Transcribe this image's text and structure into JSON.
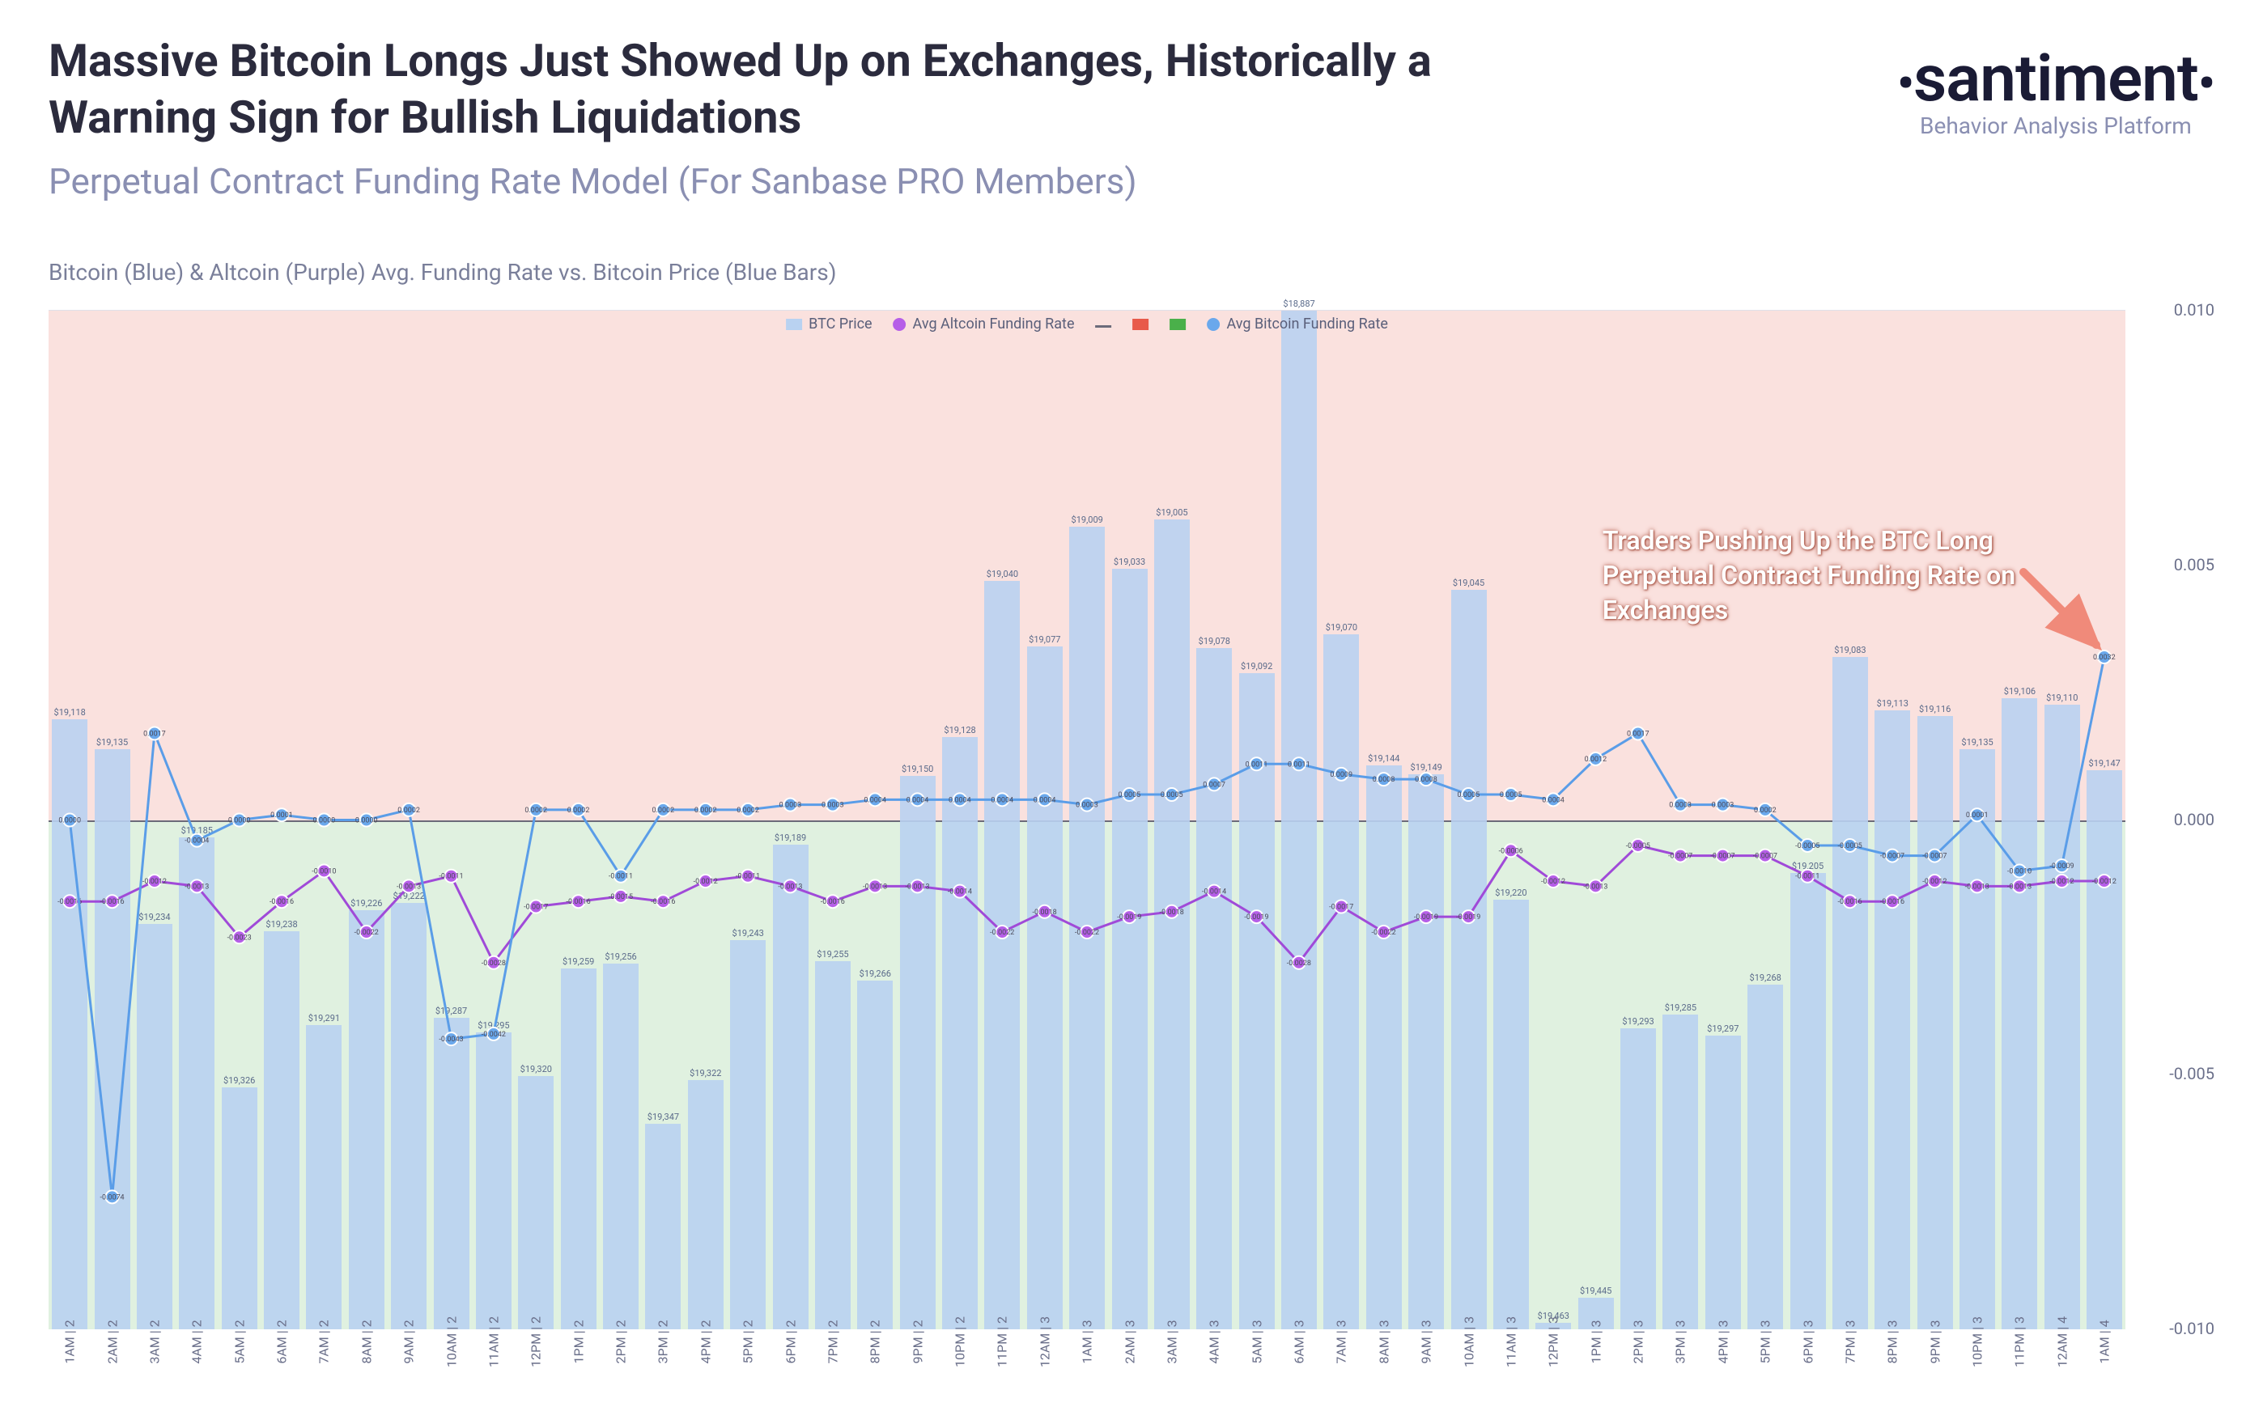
{
  "header": {
    "title": "Massive Bitcoin Longs Just Showed Up on Exchanges, Historically a Warning Sign for Bullish Liquidations",
    "subtitle": "Perpetual Contract Funding Rate Model (For Sanbase PRO Members)",
    "brand_name": "santiment",
    "brand_tag": "Behavior Analysis Platform"
  },
  "series_desc": "Bitcoin (Blue) & Altcoin (Purple) Avg. Funding Rate vs. Bitcoin Price (Blue Bars)",
  "legend": {
    "btc_price": "BTC Price",
    "alt_rate": "Avg Altcoin Funding Rate",
    "btc_rate": "Avg Bitcoin Funding Rate"
  },
  "annotation": {
    "text": "Traders Pushing Up the BTC Long Perpetual Contract Funding Rate on Exchanges"
  },
  "colors": {
    "zone_top": "#f6c9c3",
    "zone_bot": "#c7e6c7",
    "bar": "#b9d2f1",
    "btc_line": "#5a9de8",
    "btc_marker": "#6aa8ec",
    "alt_line": "#a04ad8",
    "alt_marker": "#b65ee8",
    "zero": "#6b6b7a",
    "arrow": "#f08a7a",
    "legend_red": "#e85a4a",
    "legend_green": "#4ab04a"
  },
  "chart": {
    "type": "bar+line",
    "y_rate": {
      "min": -0.01,
      "max": 0.01,
      "ticks": [
        0.01,
        0.005,
        0.0,
        -0.005,
        -0.01
      ]
    },
    "price_range": {
      "min": 18887,
      "max": 19463
    },
    "categories": [
      "1AM | 2",
      "2AM | 2",
      "3AM | 2",
      "4AM | 2",
      "5AM | 2",
      "6AM | 2",
      "7AM | 2",
      "8AM | 2",
      "9AM | 2",
      "10AM | 2",
      "11AM | 2",
      "12PM | 2",
      "1PM | 2",
      "2PM | 2",
      "3PM | 2",
      "4PM | 2",
      "5PM | 2",
      "6PM | 2",
      "7PM | 2",
      "8PM | 2",
      "9PM | 2",
      "10PM | 2",
      "11PM | 2",
      "12AM | 3",
      "1AM | 3",
      "2AM | 3",
      "3AM | 3",
      "4AM | 3",
      "5AM | 3",
      "6AM | 3",
      "7AM | 3",
      "8AM | 3",
      "9AM | 3",
      "10AM | 3",
      "11AM | 3",
      "12PM | 3",
      "1PM | 3",
      "2PM | 3",
      "3PM | 3",
      "4PM | 3",
      "5PM | 3",
      "6PM | 3",
      "7PM | 3",
      "8PM | 3",
      "9PM | 3",
      "10PM | 3",
      "11PM | 3",
      "12AM | 4",
      "1AM | 4"
    ],
    "price": [
      19118,
      19135,
      19234,
      19185,
      19326,
      19238,
      19291,
      19226,
      19222,
      19287,
      19295,
      19320,
      19259,
      19256,
      19347,
      19322,
      19243,
      19189,
      19255,
      19266,
      19150,
      19128,
      19040,
      19077,
      19009,
      19033,
      19005,
      19078,
      19092,
      18887,
      19070,
      19144,
      19149,
      19045,
      19220,
      19463,
      19445,
      19293,
      19285,
      19297,
      19268,
      19205,
      19083,
      19113,
      19116,
      19135,
      19106,
      19110,
      19147
    ],
    "price_labels": [
      "$19,118",
      "$19,135",
      "$19,234",
      "$19,185",
      "$19,326",
      "$19,238",
      "$19,291",
      "$19,226",
      "$19,222",
      "$19,287",
      "$19,295",
      "$19,320",
      "$19,259",
      "$19,256",
      "$19,347",
      "$19,322",
      "$19,243",
      "$19,189",
      "$19,255",
      "$19,266",
      "$19,150",
      "$19,128",
      "$19,040",
      "$19,077",
      "$19,009",
      "$19,033",
      "$19,005",
      "$19,078",
      "$19,092",
      "$18,887",
      "$19,070",
      "$19,144",
      "$19,149",
      "$19,045",
      "$19,220",
      "$19,463",
      "$19,445",
      "$19,293",
      "$19,285",
      "$19,297",
      "$19,268",
      "$19,205",
      "$19,083",
      "$19,113",
      "$19,116",
      "$19,135",
      "$19,106",
      "$19,110",
      "$19,147"
    ],
    "btc_rate": [
      0.0,
      -0.0074,
      0.0017,
      -0.0004,
      0.0,
      0.0001,
      0.0,
      0.0,
      0.0002,
      -0.0043,
      -0.0042,
      0.0002,
      0.0002,
      -0.0011,
      0.0002,
      0.0002,
      0.0002,
      0.0003,
      0.0003,
      0.0004,
      0.0004,
      0.0004,
      0.0004,
      0.0004,
      0.0003,
      0.0005,
      0.0005,
      0.0007,
      0.0011,
      0.0011,
      0.0009,
      0.0008,
      0.0008,
      0.0005,
      0.0005,
      0.0004,
      0.0012,
      0.0017,
      0.0003,
      0.0003,
      0.0002,
      -0.0005,
      -0.0005,
      -0.0007,
      -0.0007,
      0.0001,
      -0.001,
      -0.0009,
      0.0032
    ],
    "btc_rate_labels": [
      "0.0000",
      "-0.0074",
      "0.0017",
      "-0.0004",
      "0.0000",
      "0.0001",
      "0.0000",
      "0.0000",
      "0.0002",
      "-0.0043",
      "-0.0042",
      "0.0002",
      "0.0002",
      "-0.0011",
      "0.0002",
      "0.0002",
      "0.0002",
      "0.0003",
      "0.0003",
      "0.0004",
      "0.0004",
      "0.0004",
      "0.0004",
      "0.0004",
      "0.0003",
      "0.0005",
      "0.0005",
      "0.0007",
      "0.0011",
      "0.0011",
      "0.0009",
      "0.0008",
      "0.0008",
      "0.0005",
      "0.0005",
      "0.0004",
      "0.0012",
      "0.0017",
      "0.0003",
      "0.0003",
      "0.0002",
      "-0.0005",
      "-0.0005",
      "-0.0007",
      "-0.0007",
      "0.0001",
      "-0.0010",
      "-0.0009",
      "0.0032"
    ],
    "alt_rate": [
      -0.0016,
      -0.0016,
      -0.0012,
      -0.0013,
      -0.0023,
      -0.0016,
      -0.001,
      -0.0022,
      -0.0013,
      -0.0011,
      -0.0028,
      -0.0017,
      -0.0016,
      -0.0015,
      -0.0016,
      -0.0012,
      -0.0011,
      -0.0013,
      -0.0016,
      -0.0013,
      -0.0013,
      -0.0014,
      -0.0022,
      -0.0018,
      -0.0022,
      -0.0019,
      -0.0018,
      -0.0014,
      -0.0019,
      -0.0028,
      -0.0017,
      -0.0022,
      -0.0019,
      -0.0019,
      -0.0006,
      -0.0012,
      -0.0013,
      -0.0005,
      -0.0007,
      -0.0007,
      -0.0007,
      -0.0011,
      -0.0016,
      -0.0016,
      -0.0012,
      -0.0013,
      -0.0013,
      -0.0012,
      -0.0012
    ],
    "alt_rate_labels": [
      "-0.0016",
      "-0.0016",
      "-0.0012",
      "-0.0013",
      "-0.0023",
      "-0.0016",
      "-0.0010",
      "-0.0022",
      "-0.0013",
      "-0.0011",
      "-0.0028",
      "-0.0017",
      "-0.0016",
      "-0.0015",
      "-0.0016",
      "-0.0012",
      "-0.0011",
      "-0.0013",
      "-0.0016",
      "-0.0013",
      "-0.0013",
      "-0.0014",
      "-0.0022",
      "-0.0018",
      "-0.0022",
      "-0.0019",
      "-0.0018",
      "-0.0014",
      "-0.0019",
      "-0.0028",
      "-0.0017",
      "-0.0022",
      "-0.0019",
      "-0.0019",
      "-0.0006",
      "-0.0012",
      "-0.0013",
      "-0.0005",
      "-0.0007",
      "-0.0007",
      "-0.0007",
      "-0.0011",
      "-0.0016",
      "-0.0016",
      "-0.0012",
      "-0.0013",
      "-0.0013",
      "-0.0012",
      "-0.0012"
    ]
  }
}
